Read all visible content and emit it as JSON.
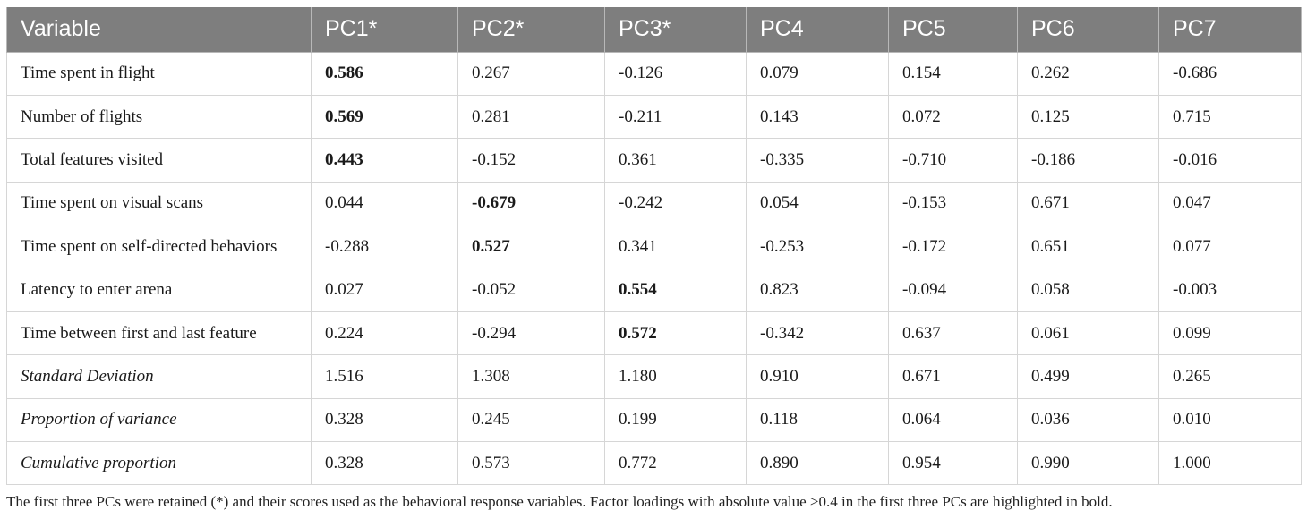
{
  "table": {
    "headers": [
      "Variable",
      "PC1*",
      "PC2*",
      "PC3*",
      "PC4",
      "PC5",
      "PC6",
      "PC7"
    ],
    "rows": [
      {
        "label": "Time spent in flight",
        "style": "normal",
        "values": [
          "0.586",
          "0.267",
          "-0.126",
          "0.079",
          "0.154",
          "0.262",
          "-0.686"
        ],
        "bold": [
          0
        ]
      },
      {
        "label": "Number of flights",
        "style": "normal",
        "values": [
          "0.569",
          "0.281",
          "-0.211",
          "0.143",
          "0.072",
          "0.125",
          "0.715"
        ],
        "bold": [
          0
        ]
      },
      {
        "label": "Total features visited",
        "style": "normal",
        "values": [
          "0.443",
          "-0.152",
          "0.361",
          "-0.335",
          "-0.710",
          "-0.186",
          "-0.016"
        ],
        "bold": [
          0
        ]
      },
      {
        "label": "Time spent on visual scans",
        "style": "normal",
        "values": [
          "0.044",
          "-0.679",
          "-0.242",
          "0.054",
          "-0.153",
          "0.671",
          "0.047"
        ],
        "bold": [
          1
        ]
      },
      {
        "label": "Time spent on self-directed behaviors",
        "style": "normal",
        "values": [
          "-0.288",
          "0.527",
          "0.341",
          "-0.253",
          "-0.172",
          "0.651",
          "0.077"
        ],
        "bold": [
          1
        ]
      },
      {
        "label": "Latency to enter arena",
        "style": "normal",
        "values": [
          "0.027",
          "-0.052",
          "0.554",
          "0.823",
          "-0.094",
          "0.058",
          "-0.003"
        ],
        "bold": [
          2
        ]
      },
      {
        "label": "Time between first and last feature",
        "style": "normal",
        "values": [
          "0.224",
          "-0.294",
          "0.572",
          "-0.342",
          "0.637",
          "0.061",
          "0.099"
        ],
        "bold": [
          2
        ]
      },
      {
        "label": "Standard Deviation",
        "style": "italic",
        "values": [
          "1.516",
          "1.308",
          "1.180",
          "0.910",
          "0.671",
          "0.499",
          "0.265"
        ],
        "bold": []
      },
      {
        "label": "Proportion of variance",
        "style": "italic",
        "values": [
          "0.328",
          "0.245",
          "0.199",
          "0.118",
          "0.064",
          "0.036",
          "0.010"
        ],
        "bold": []
      },
      {
        "label": "Cumulative proportion",
        "style": "italic",
        "values": [
          "0.328",
          "0.573",
          "0.772",
          "0.890",
          "0.954",
          "0.990",
          "1.000"
        ],
        "bold": []
      }
    ]
  },
  "footnote": "The first three PCs were retained (*) and their scores used as the behavioral response variables. Factor loadings with absolute value >0.4 in the first three PCs are highlighted in bold."
}
